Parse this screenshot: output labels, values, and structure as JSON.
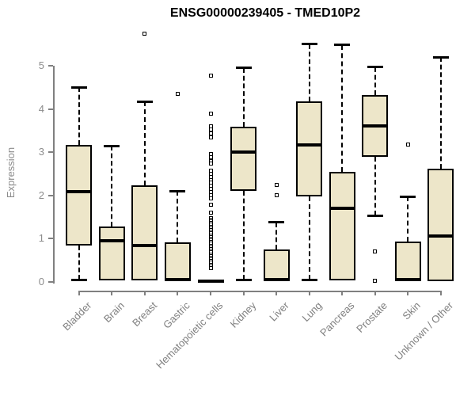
{
  "title": "ENSG00000239405 - TMED10P2",
  "chart_data": {
    "type": "boxplot",
    "title": "ENSG00000239405 - TMED10P2",
    "xlabel": "",
    "ylabel": "Expression",
    "ylim": [
      0,
      5.8
    ],
    "yticks": [
      0,
      1,
      2,
      3,
      4,
      5
    ],
    "grid": false,
    "legend": null,
    "categories": [
      "Bladder",
      "Brain",
      "Breast",
      "Gastric",
      "Hematopoietic cells",
      "Kidney",
      "Liver",
      "Lung",
      "Pancreas",
      "Prostate",
      "Skin",
      "Unknown / Other"
    ],
    "series": [
      {
        "category": "Bladder",
        "whisker_low": 0.05,
        "q1": 0.85,
        "median": 2.08,
        "q3": 3.17,
        "whisker_high": 4.5,
        "outliers": []
      },
      {
        "category": "Brain",
        "whisker_low": null,
        "q1": 0.03,
        "median": 0.95,
        "q3": 1.28,
        "whisker_high": 3.15,
        "outliers": []
      },
      {
        "category": "Breast",
        "whisker_low": null,
        "q1": 0.03,
        "median": 0.84,
        "q3": 2.23,
        "whisker_high": 4.17,
        "outliers": [
          5.75
        ]
      },
      {
        "category": "Gastric",
        "whisker_low": null,
        "q1": 0.02,
        "median": 0.06,
        "q3": 0.92,
        "whisker_high": 2.1,
        "outliers": [
          4.35
        ]
      },
      {
        "category": "Hematopoietic cells",
        "whisker_low": null,
        "q1": 0.0,
        "median": 0.02,
        "q3": 0.05,
        "whisker_high": null,
        "outliers": [
          4.78,
          3.9,
          3.6,
          3.52,
          3.43,
          3.35,
          2.95,
          2.88,
          2.8,
          2.73,
          2.57,
          2.5,
          2.43,
          2.36,
          2.3,
          2.22,
          2.15,
          2.08,
          2.0,
          1.93,
          1.78,
          1.6,
          1.48,
          1.44,
          1.4,
          1.36,
          1.32,
          1.28,
          1.24,
          1.2,
          1.16,
          1.12,
          1.08,
          1.04,
          1.0,
          0.96,
          0.92,
          0.88,
          0.84,
          0.8,
          0.76,
          0.72,
          0.68,
          0.64,
          0.6,
          0.56,
          0.52,
          0.48,
          0.44,
          0.4,
          0.36,
          0.32
        ]
      },
      {
        "category": "Kidney",
        "whisker_low": 0.05,
        "q1": 2.1,
        "median": 3.0,
        "q3": 3.59,
        "whisker_high": 4.95,
        "outliers": []
      },
      {
        "category": "Liver",
        "whisker_low": null,
        "q1": 0.02,
        "median": 0.05,
        "q3": 0.75,
        "whisker_high": 1.38,
        "outliers": [
          2.25,
          2.0
        ]
      },
      {
        "category": "Lung",
        "whisker_low": 0.05,
        "q1": 1.97,
        "median": 3.17,
        "q3": 4.17,
        "whisker_high": 5.5,
        "outliers": []
      },
      {
        "category": "Pancreas",
        "whisker_low": null,
        "q1": 0.03,
        "median": 1.7,
        "q3": 2.55,
        "whisker_high": 5.48,
        "outliers": []
      },
      {
        "category": "Prostate",
        "whisker_low": 1.53,
        "q1": 2.9,
        "median": 3.6,
        "q3": 4.33,
        "whisker_high": 4.97,
        "outliers": [
          0.7,
          0.02
        ]
      },
      {
        "category": "Skin",
        "whisker_low": null,
        "q1": 0.02,
        "median": 0.05,
        "q3": 0.93,
        "whisker_high": 1.97,
        "outliers": [
          3.17
        ]
      },
      {
        "category": "Unknown / Other",
        "whisker_low": null,
        "q1": 0.02,
        "median": 1.07,
        "q3": 2.62,
        "whisker_high": 5.2,
        "outliers": []
      }
    ],
    "colors": {
      "box_fill": "#EDE6C9",
      "box_border": "#000000",
      "median": "#000000",
      "whisker": "#000000",
      "outlier_fill": "#FFFFFF",
      "axis": "#808080",
      "tick_label": "#8C8C8C",
      "title": "#000000"
    }
  }
}
